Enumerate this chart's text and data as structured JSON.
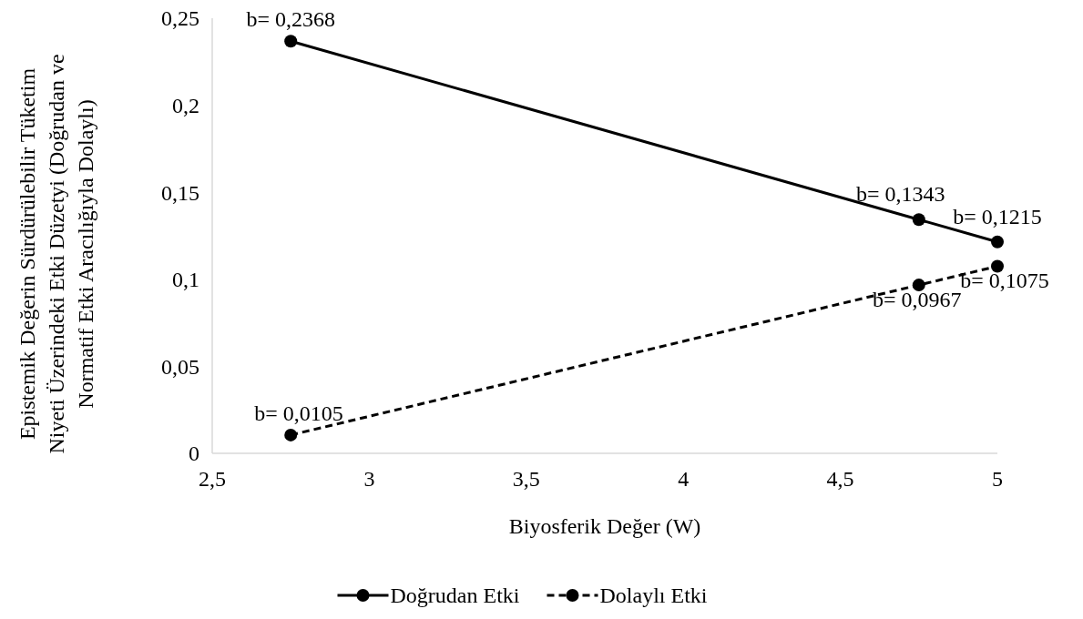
{
  "chart_data": {
    "type": "line",
    "xlabel": "Biyosferik Değer (W)",
    "ylabel": "Epistemik Değerin Sürdürülebilir Tüketim Niyeti Üzerindeki Etki Düzetyi (Doğrudan ve Normatif Etki Aracılığıyla Dolaylı)",
    "x": [
      2.75,
      4.75,
      5
    ],
    "series": [
      {
        "name": "Doğrudan Etki",
        "color": "#000000",
        "line_style": "solid",
        "values": [
          0.2368,
          0.1343,
          0.1215
        ],
        "value_labels": [
          "b= 0,2368",
          "b= 0,1343",
          "b= 0,1215"
        ]
      },
      {
        "name": "Dolaylı Etki",
        "color": "#000000",
        "line_style": "dashed",
        "values": [
          0.0105,
          0.0967,
          0.1075
        ],
        "value_labels": [
          "b= 0,0105",
          "b= 0,0967",
          "b= 0,1075"
        ]
      }
    ],
    "xlim": [
      2.5,
      5
    ],
    "xticks": [
      {
        "value": 2.5,
        "label": "2,5"
      },
      3,
      {
        "value": 3.5,
        "label": "3,5"
      },
      4,
      {
        "value": 4.5,
        "label": "4,5"
      },
      5
    ],
    "ylim": [
      0,
      0.25
    ],
    "yticks": [
      0,
      {
        "value": 0.05,
        "label": "0,05"
      },
      {
        "value": 0.1,
        "label": "0,1"
      },
      {
        "value": 0.15,
        "label": "0,15"
      },
      {
        "value": 0.2,
        "label": "0,2"
      },
      {
        "value": 0.25,
        "label": "0,25"
      }
    ],
    "marker": "circle",
    "grid": false,
    "legend": "bottom"
  }
}
